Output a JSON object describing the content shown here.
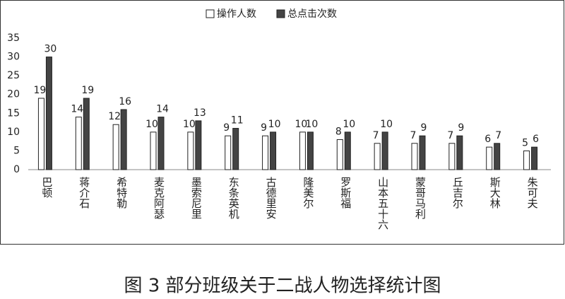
{
  "chart_data": {
    "type": "bar",
    "caption": "图 3 部分班级关于二战人物选择统计图",
    "categories": [
      "巴顿",
      "蒋介石",
      "希特勒",
      "麦克阿瑟",
      "墨索尼里",
      "东条英机",
      "古德里安",
      "隆美尔",
      "罗斯福",
      "山本五十六",
      "蒙哥马利",
      "丘吉尔",
      "斯大林",
      "朱可夫"
    ],
    "series": [
      {
        "name": "操作人数",
        "color": "#ffffff",
        "values": [
          19,
          14,
          12,
          10,
          10,
          9,
          9,
          10,
          8,
          7,
          7,
          7,
          6,
          5
        ]
      },
      {
        "name": "总点击次数",
        "color": "#444444",
        "values": [
          30,
          19,
          16,
          14,
          13,
          11,
          10,
          10,
          10,
          10,
          9,
          9,
          7,
          6
        ]
      }
    ],
    "ylim": [
      0,
      35
    ],
    "yticks": [
      0,
      5,
      10,
      15,
      20,
      25,
      30,
      35
    ],
    "grid": false,
    "legend": "top"
  }
}
